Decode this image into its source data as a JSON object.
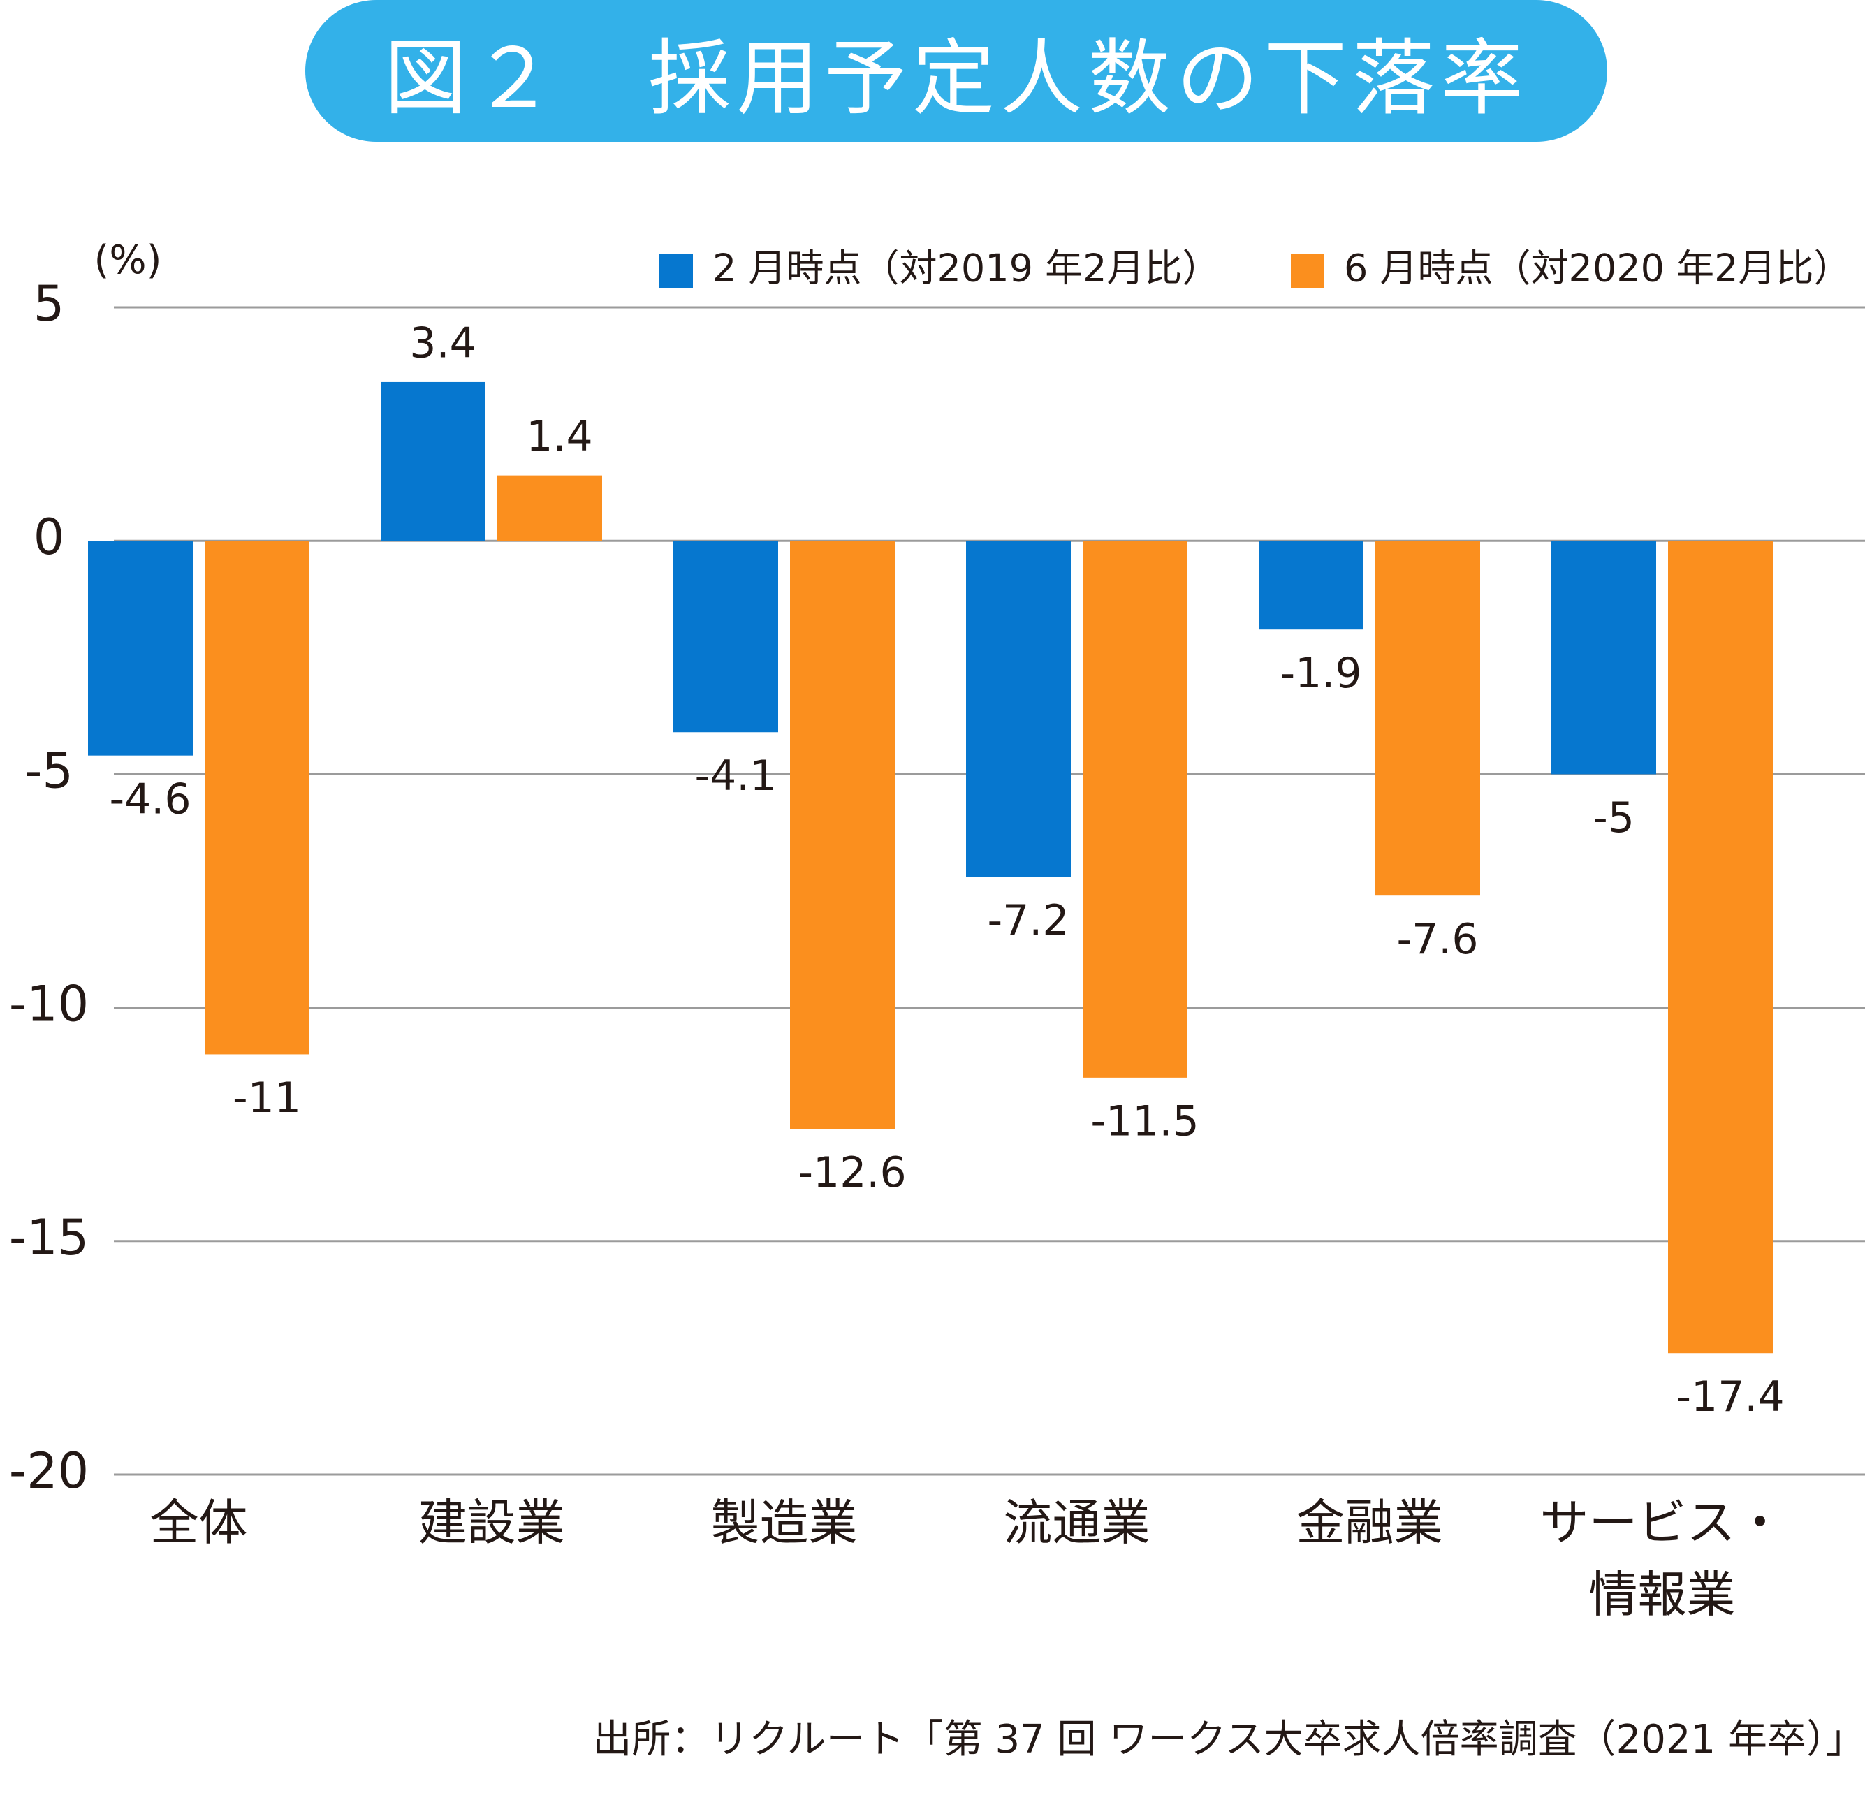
{
  "colors": {
    "title_bg": "#33b1e9",
    "series_feb": "#0677cf",
    "series_jun": "#fb8f1e",
    "grid": "#9b9b9b",
    "text": "#231815"
  },
  "chart_data": {
    "type": "bar",
    "title": "図２　採用予定人数の下落率",
    "ylabel": "(%)",
    "ylim": [
      -20,
      5
    ],
    "yticks": [
      5,
      0,
      -5,
      -10,
      -15,
      -20
    ],
    "ytick_labels": [
      "5",
      "0",
      "-5",
      "-10",
      "-15",
      "-20"
    ],
    "categories": [
      [
        "全体"
      ],
      [
        "建設業"
      ],
      [
        "製造業"
      ],
      [
        "流通業"
      ],
      [
        "金融業"
      ],
      [
        "サービス・",
        "情報業"
      ]
    ],
    "series": [
      {
        "name": "2 月時点（対2019 年2月比）",
        "values": [
          -4.6,
          3.4,
          -4.1,
          -7.2,
          -1.9,
          -5
        ],
        "labels": [
          "-4.6",
          "3.4",
          "-4.1",
          "-7.2",
          "-1.9",
          "-5"
        ]
      },
      {
        "name": "6 月時点（対2020 年2月比）",
        "values": [
          -11,
          1.4,
          -12.6,
          -11.5,
          -7.6,
          -17.4
        ],
        "labels": [
          "-11",
          "1.4",
          "-12.6",
          "-11.5",
          "-7.6",
          "-17.4"
        ]
      }
    ],
    "legend": "top-right",
    "grid": true
  },
  "source": "出所：リクルート「第 37 回 ワークス大卒求人倍率調査（2021 年卒）」"
}
